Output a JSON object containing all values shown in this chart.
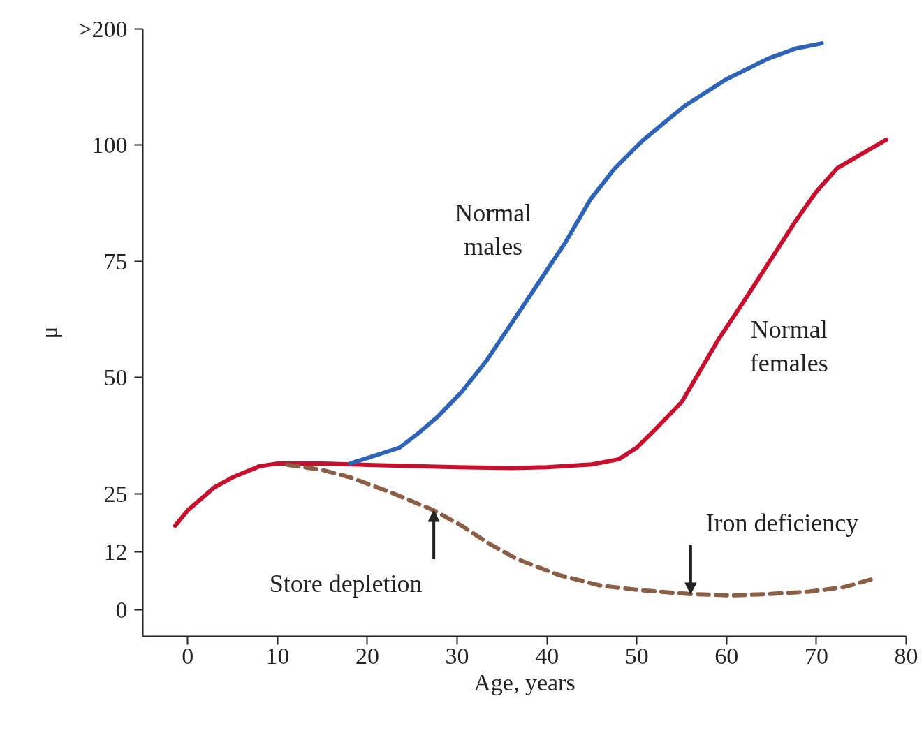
{
  "chart_data": {
    "type": "line",
    "xlabel": "Age, years",
    "ylabel": "μ",
    "xlim": [
      -5,
      80
    ],
    "xticks": [
      0,
      10,
      20,
      30,
      40,
      50,
      60,
      70,
      80
    ],
    "ylim": [
      -5.7,
      125
    ],
    "yticks": [
      0,
      {
        "value": 12.5,
        "label": "12"
      },
      25,
      50,
      75,
      100,
      {
        "value": 125,
        "label": ">200"
      }
    ],
    "grid": false,
    "tick_labels": "xy",
    "series": [
      {
        "color": "#c8102e",
        "line_style": "solid",
        "x": [
          -1.4,
          0,
          3,
          5,
          8,
          10,
          15,
          20,
          30,
          36,
          40,
          45,
          48,
          50,
          52,
          55,
          59.1,
          62.2,
          67.7,
          70,
          72.3,
          77.8
        ],
        "values": [
          18.1,
          21.4,
          26.4,
          28.5,
          30.9,
          31.5,
          31.5,
          31.2,
          30.7,
          30.5,
          30.7,
          31.3,
          32.4,
          34.9,
          38.7,
          44.7,
          58.2,
          67.2,
          83.7,
          90,
          95,
          101.2
        ]
      },
      {
        "color": "#2e64b8",
        "line_style": "solid",
        "x": [
          18.1,
          23.6,
          25.8,
          27.8,
          30.5,
          33.3,
          35.9,
          39,
          42.1,
          44.8,
          47.5,
          50.6,
          55.3,
          59.9,
          64.6,
          67.7,
          70.6
        ],
        "values": [
          31.5,
          34.9,
          38.2,
          41.5,
          46.9,
          53.7,
          61.2,
          70.2,
          79.2,
          88.2,
          94.9,
          100.9,
          108.4,
          114.1,
          118.6,
          120.8,
          121.9
        ]
      },
      {
        "color": "#8b5e45",
        "line_style": "dashed",
        "x": [
          11.1,
          15,
          18.1,
          22.7,
          27.4,
          30.5,
          33.6,
          36.7,
          41.3,
          46,
          50.6,
          56,
          60.7,
          64.6,
          69.2,
          73.1,
          76.4
        ],
        "values": [
          31.2,
          30.1,
          28.5,
          25.2,
          21.4,
          18.1,
          14.2,
          10.9,
          7.5,
          5.2,
          4.2,
          3.4,
          3.1,
          3.4,
          3.9,
          4.9,
          6.7
        ]
      }
    ],
    "annotations": [
      {
        "text": "Normal\nmales",
        "x": 42.1,
        "y": 79.2
      },
      {
        "text": "Normal\nfemales",
        "x": 59.1,
        "y": 58.2
      },
      {
        "text": "Store depletion",
        "x": 27.4,
        "y": 21.4
      },
      {
        "text": "Iron deficiency",
        "x": 56,
        "y": 3.4
      }
    ]
  }
}
